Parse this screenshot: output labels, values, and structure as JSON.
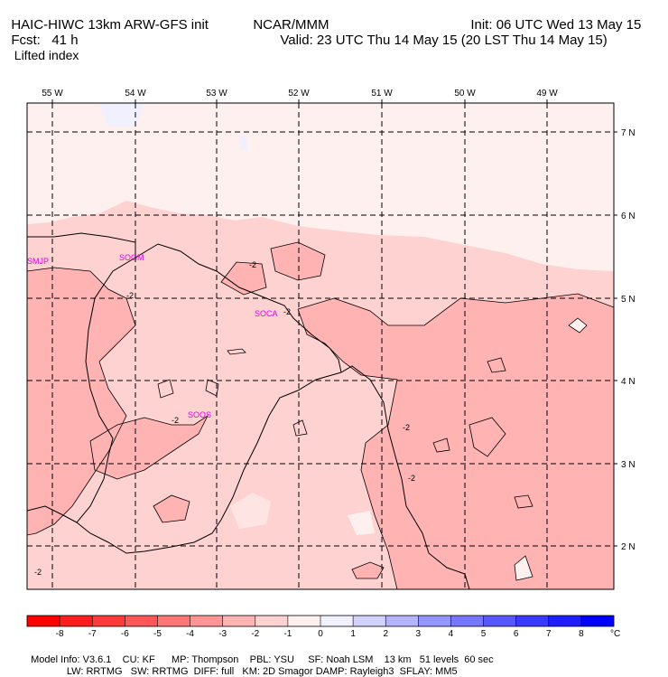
{
  "header": {
    "model": "HAIC-HIWC 13km ARW-GFS init",
    "org": "NCAR/MMM",
    "init": "Init: 06 UTC Wed 13 May 15",
    "fcst": "Fcst:   41 h",
    "valid": "Valid: 23 UTC Thu 14 May 15 (20 LST Thu 14 May 15)",
    "field": "Lifted index"
  },
  "map": {
    "lon_labels": [
      "55 W",
      "54 W",
      "53 W",
      "52 W",
      "51 W",
      "50 W",
      "49 W"
    ],
    "lat_labels": [
      "7 N",
      "6 N",
      "5 N",
      "4 N",
      "3 N",
      "2 N"
    ],
    "stations": [
      "SMJP",
      "SOGM",
      "SOCA",
      "SOOS"
    ],
    "contour_labels": [
      "-2",
      "-2",
      "-2",
      "-2",
      "-2",
      "-2",
      "-2"
    ]
  },
  "colorbar": {
    "ticks": [
      "-8",
      "-7",
      "-6",
      "-5",
      "-4",
      "-3",
      "-2",
      "-1",
      "0",
      "1",
      "2",
      "3",
      "4",
      "5",
      "6",
      "7",
      "8"
    ],
    "unit": "°C",
    "colors": [
      "#ff0000",
      "#ff1d1d",
      "#ff3a3a",
      "#ff5757",
      "#ff7676",
      "#ff9595",
      "#ffb3b3",
      "#ffd2d2",
      "#fff0f0",
      "#f0f0ff",
      "#d2d2ff",
      "#b3b3ff",
      "#9595ff",
      "#7676ff",
      "#5757ff",
      "#3a3aff",
      "#1d1dff",
      "#0000ff"
    ]
  },
  "footer": {
    "line1": "Model Info: V3.6.1    CU: KF      MP: Thompson    PBL: YSU     SF: Noah LSM    13 km   51 levels  60 sec",
    "line2": "             LW: RRTMG   SW: RRTMG  DIFF: full   KM: 2D Smagor DAMP: Rayleigh3  SFLAY: MM5"
  }
}
